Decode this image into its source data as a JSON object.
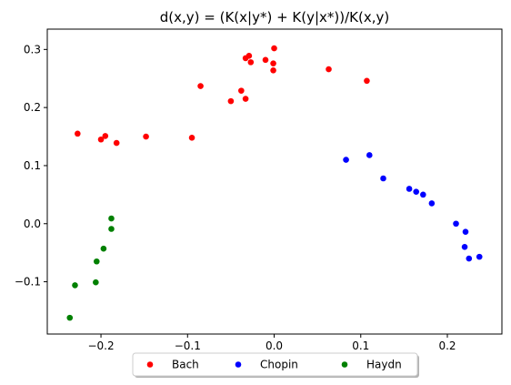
{
  "chart_data": {
    "type": "scatter",
    "title": "d(x,y) = (K(x|y*) + K(y|x*))/K(x,y)",
    "xlabel": "",
    "ylabel": "",
    "xlim": [
      -0.262,
      0.263
    ],
    "ylim": [
      -0.19,
      0.335
    ],
    "xticks": [
      -0.2,
      -0.1,
      0.0,
      0.1,
      0.2
    ],
    "xtick_labels": [
      "−0.2",
      "−0.1",
      "0.0",
      "0.1",
      "0.2"
    ],
    "yticks": [
      -0.1,
      0.0,
      0.1,
      0.2,
      0.3
    ],
    "ytick_labels": [
      "−0.1",
      "0.0",
      "0.1",
      "0.2",
      "0.3"
    ],
    "grid": false,
    "legend_placement": "bottom-center-outside",
    "series": [
      {
        "name": "Bach",
        "color": "#ff0000",
        "points": [
          [
            -0.227,
            0.155
          ],
          [
            -0.2,
            0.145
          ],
          [
            -0.195,
            0.151
          ],
          [
            -0.182,
            0.139
          ],
          [
            -0.148,
            0.15
          ],
          [
            -0.095,
            0.148
          ],
          [
            -0.085,
            0.237
          ],
          [
            -0.05,
            0.211
          ],
          [
            -0.038,
            0.229
          ],
          [
            -0.033,
            0.215
          ],
          [
            -0.033,
            0.285
          ],
          [
            -0.029,
            0.289
          ],
          [
            -0.027,
            0.278
          ],
          [
            -0.01,
            0.282
          ],
          [
            0.0,
            0.302
          ],
          [
            -0.001,
            0.276
          ],
          [
            -0.001,
            0.264
          ],
          [
            0.063,
            0.266
          ],
          [
            0.107,
            0.246
          ]
        ]
      },
      {
        "name": "Chopin",
        "color": "#0000ff",
        "points": [
          [
            0.083,
            0.11
          ],
          [
            0.11,
            0.118
          ],
          [
            0.126,
            0.078
          ],
          [
            0.156,
            0.06
          ],
          [
            0.164,
            0.055
          ],
          [
            0.172,
            0.05
          ],
          [
            0.182,
            0.035
          ],
          [
            0.21,
            0.0
          ],
          [
            0.221,
            -0.014
          ],
          [
            0.22,
            -0.04
          ],
          [
            0.225,
            -0.06
          ],
          [
            0.237,
            -0.057
          ]
        ]
      },
      {
        "name": "Haydn",
        "color": "#008000",
        "points": [
          [
            -0.236,
            -0.162
          ],
          [
            -0.23,
            -0.106
          ],
          [
            -0.206,
            -0.101
          ],
          [
            -0.205,
            -0.065
          ],
          [
            -0.197,
            -0.043
          ],
          [
            -0.188,
            0.009
          ],
          [
            -0.188,
            -0.009
          ]
        ]
      }
    ]
  }
}
